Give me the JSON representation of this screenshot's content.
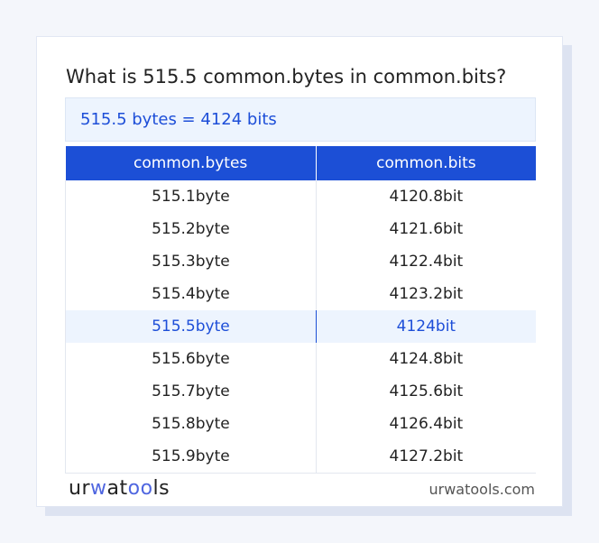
{
  "title": "What is 515.5 common.bytes in common.bits?",
  "result": "515.5 bytes = 4124 bits",
  "table": {
    "headers": [
      "common.bytes",
      "common.bits"
    ],
    "rows": [
      [
        "515.1byte",
        "4120.8bit"
      ],
      [
        "515.2byte",
        "4121.6bit"
      ],
      [
        "515.3byte",
        "4122.4bit"
      ],
      [
        "515.4byte",
        "4123.2bit"
      ],
      [
        "515.5byte",
        "4124bit"
      ],
      [
        "515.6byte",
        "4124.8bit"
      ],
      [
        "515.7byte",
        "4125.6bit"
      ],
      [
        "515.8byte",
        "4126.4bit"
      ],
      [
        "515.9byte",
        "4127.2bit"
      ]
    ],
    "highlighted_row": 4
  },
  "footer": {
    "logo": "urwatools",
    "site": "urwatools.com"
  },
  "colors": {
    "accent": "#1c4fd6",
    "highlight_bg": "#edf4fe"
  }
}
